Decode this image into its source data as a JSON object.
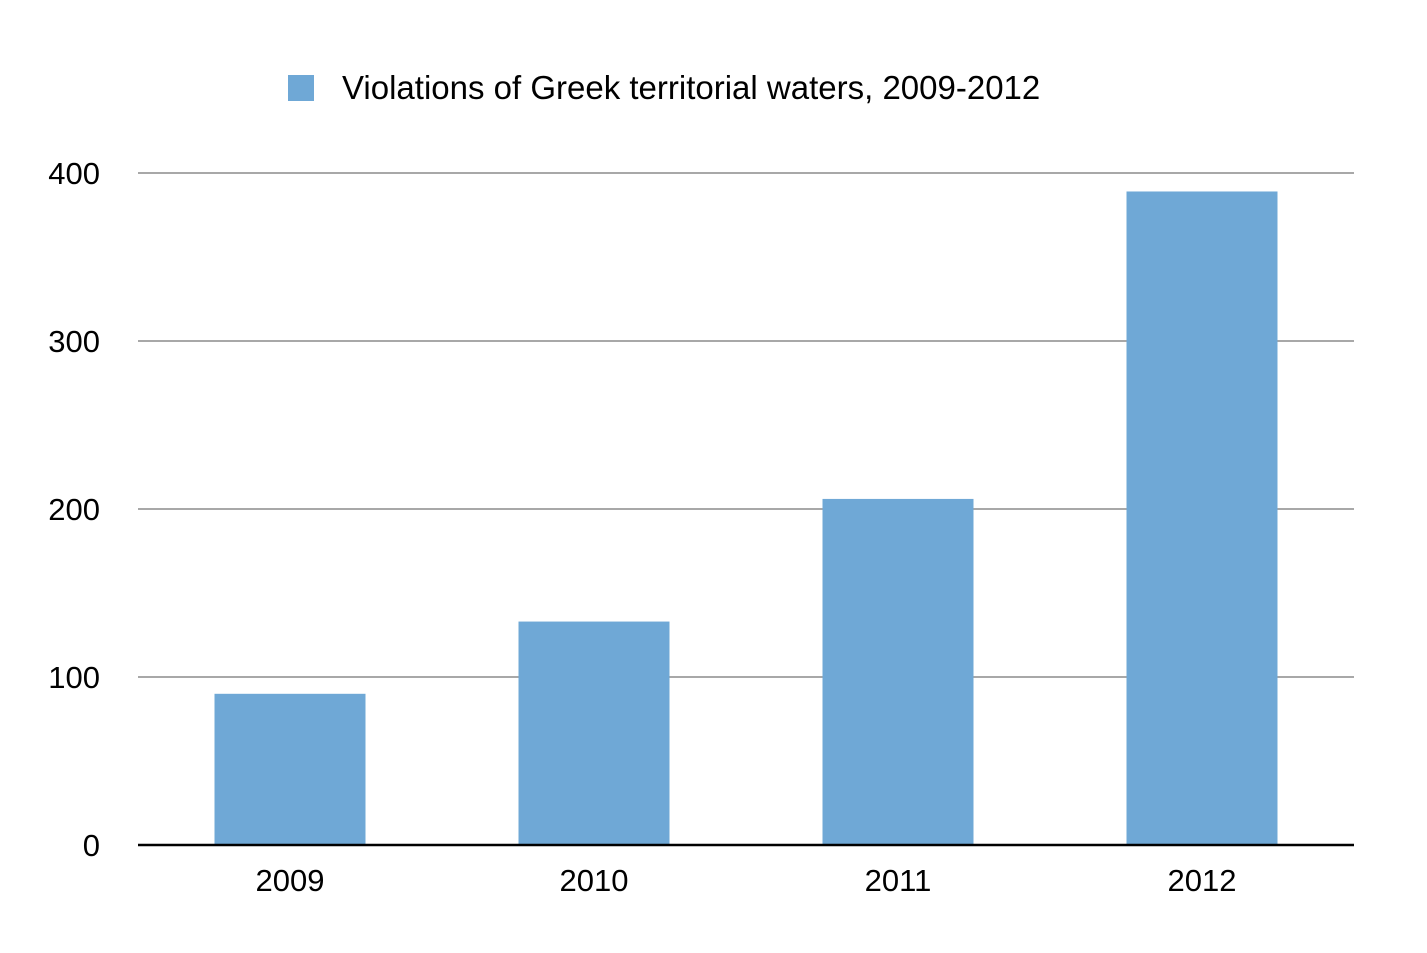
{
  "chart_data": {
    "type": "bar",
    "categories": [
      "2009",
      "2010",
      "2011",
      "2012"
    ],
    "series": [
      {
        "name": "Violations of Greek territorial waters, 2009-2012",
        "values": [
          90,
          133,
          206,
          389
        ]
      }
    ],
    "ylim": [
      0,
      400
    ],
    "yticks": [
      0,
      100,
      200,
      300,
      400
    ],
    "grid": true,
    "legend_position": "top",
    "colors": {
      "bar": "#6fa8d6",
      "grid": "#a8a8a8",
      "axis": "#000000"
    }
  }
}
